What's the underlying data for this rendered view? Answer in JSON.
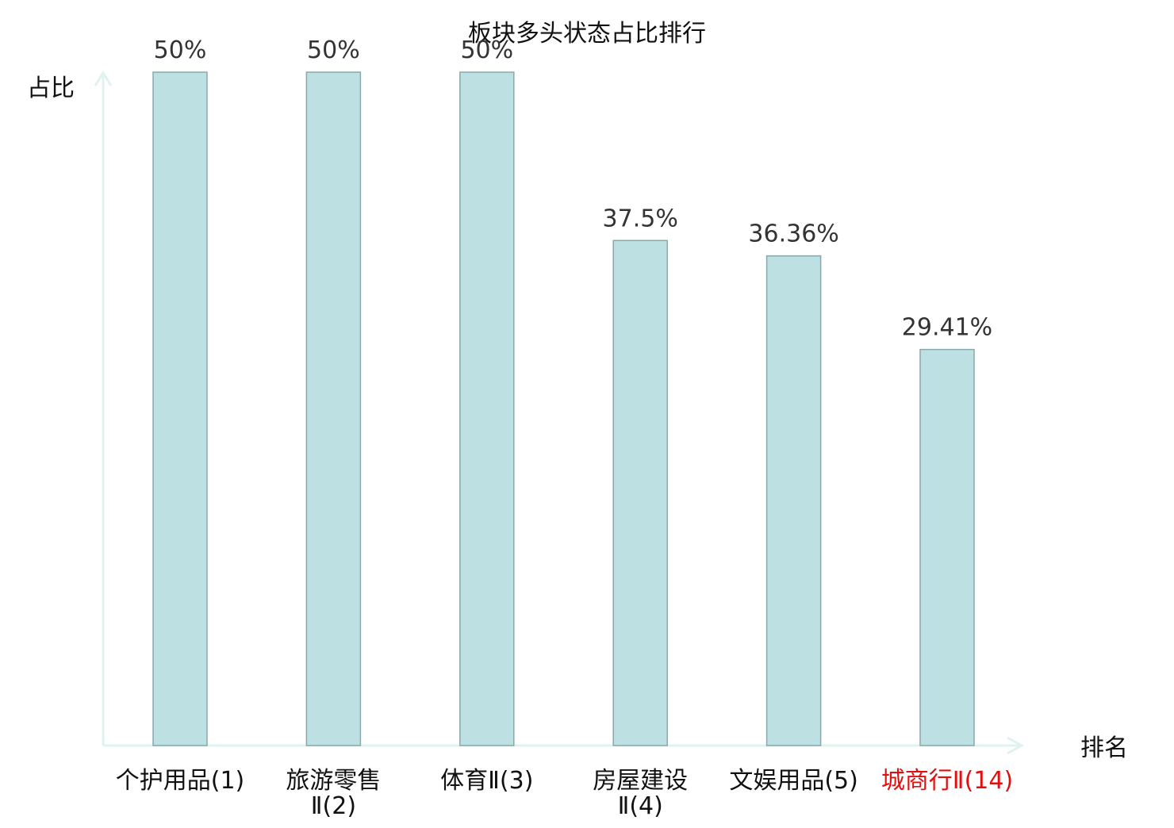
{
  "chart_data": {
    "type": "bar",
    "title": "板块多头状态占比排行",
    "xlabel": "排名",
    "ylabel": "占比",
    "ylim": [
      0,
      50
    ],
    "grid": false,
    "categories": [
      {
        "name": "个护用品",
        "rank": "(1)",
        "highlight": false
      },
      {
        "name": "旅游零售",
        "rank": "Ⅱ(2)",
        "highlight": false
      },
      {
        "name": "体育Ⅱ",
        "rank": "(3)",
        "highlight": false
      },
      {
        "name": "房屋建设",
        "rank": "Ⅱ(4)",
        "highlight": false
      },
      {
        "name": "文娱用品",
        "rank": "(5)",
        "highlight": false
      },
      {
        "name": "城商行Ⅱ",
        "rank": "(14)",
        "highlight": true
      }
    ],
    "values": [
      50,
      50,
      50,
      37.5,
      36.36,
      29.41
    ],
    "value_labels": [
      "50%",
      "50%",
      "50%",
      "37.5%",
      "36.36%",
      "29.41%"
    ],
    "colors": {
      "bar_fill": "#bde0e3",
      "bar_stroke": "#8aa8ab",
      "axis": "#e0f2f0",
      "highlight_text": "#e01010",
      "label_text": "#333333",
      "text": "#111111"
    }
  }
}
